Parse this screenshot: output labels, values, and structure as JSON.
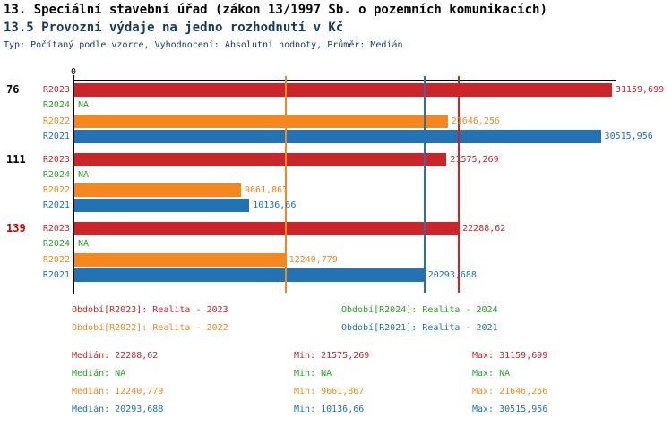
{
  "header": {
    "title_line1": "13. Speciální stavební úřad (zákon 13/1997 Sb. o pozemních komunikacích)",
    "title_line2": "13.5 Provozní výdaje na jedno rozhodnutí v Kč",
    "subtitle": "Typ: Počítaný podle vzorce, Vyhodnocení: Absolutní hodnoty, Průměr: Medián"
  },
  "colors": {
    "R2023": "#cc2529",
    "R2024": "#28a228",
    "R2022": "#f6871f",
    "R2021": "#2272b4",
    "title_accent": "#17375e",
    "group_label_default": "#000000",
    "group_label_highlight": "#cc0000",
    "axis": "#000000"
  },
  "chart_data": {
    "type": "bar",
    "orientation": "horizontal",
    "title": "13.5 Provozní výdaje na jedno rozhodnutí v Kč",
    "axis_origin_label": "0",
    "axis_max": 31370,
    "grid": false,
    "series_order": [
      "R2023",
      "R2024",
      "R2022",
      "R2021"
    ],
    "na_text": "NA",
    "groups": [
      {
        "label": "76",
        "highlight": false,
        "values": {
          "R2023": 31159.699,
          "R2024": null,
          "R2022": 21646.256,
          "R2021": 30515.956
        },
        "display": {
          "R2023": "31159,699",
          "R2024": "NA",
          "R2022": "21646,256",
          "R2021": "30515,956"
        }
      },
      {
        "label": "111",
        "highlight": false,
        "values": {
          "R2023": 21575.269,
          "R2024": null,
          "R2022": 9661.867,
          "R2021": 10136.66
        },
        "display": {
          "R2023": "21575,269",
          "R2024": "NA",
          "R2022": "9661,867",
          "R2021": "10136,66"
        }
      },
      {
        "label": "139",
        "highlight": true,
        "values": {
          "R2023": 22288.62,
          "R2024": null,
          "R2022": 12240.779,
          "R2021": 20293.688
        },
        "display": {
          "R2023": "22288,62",
          "R2024": "NA",
          "R2022": "12240,779",
          "R2021": "20293,688"
        }
      }
    ],
    "median_lines": [
      {
        "series": "R2023",
        "value": 22288.62
      },
      {
        "series": "R2022",
        "value": 12240.779
      },
      {
        "series": "R2021",
        "value": 20293.688
      }
    ]
  },
  "legend": [
    {
      "series": "R2023",
      "label": "Období[R2023]: Realita - 2023"
    },
    {
      "series": "R2024",
      "label": "Období[R2024]: Realita - 2024"
    },
    {
      "series": "R2022",
      "label": "Období[R2022]: Realita - 2022"
    },
    {
      "series": "R2021",
      "label": "Období[R2021]: Realita - 2021"
    }
  ],
  "stats": [
    {
      "series": "R2023",
      "median": "Medián: 22288,62",
      "min": "Min: 21575,269",
      "max": "Max: 31159,699"
    },
    {
      "series": "R2024",
      "median": "Medián: NA",
      "min": "Min: NA",
      "max": "Max: NA"
    },
    {
      "series": "R2022",
      "median": "Medián: 12240,779",
      "min": "Min: 9661,867",
      "max": "Max: 21646,256"
    },
    {
      "series": "R2021",
      "median": "Medián: 20293,688",
      "min": "Min: 10136,66",
      "max": "Max: 30515,956"
    }
  ]
}
